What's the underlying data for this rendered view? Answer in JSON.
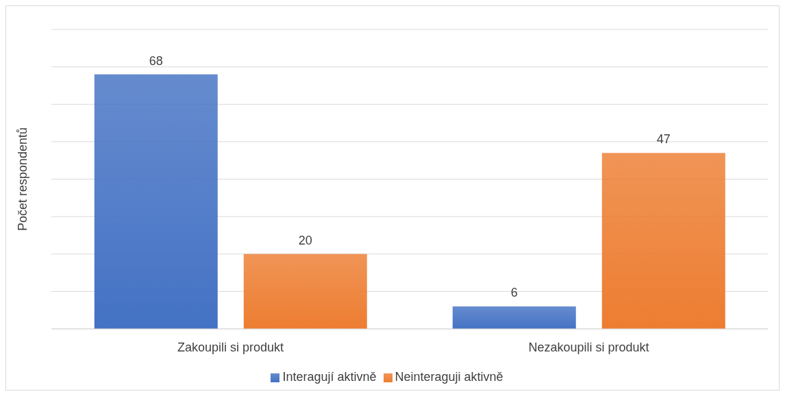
{
  "chart_data": {
    "type": "bar",
    "ylabel": "Počet respondentů",
    "categories": [
      "Zakoupili si produkt",
      "Nezakoupili si produkt"
    ],
    "series": [
      {
        "name": "Interagují aktivně",
        "color": "#4472c4",
        "values": [
          68,
          6
        ]
      },
      {
        "name": "Neinteraguji aktivně",
        "color": "#ed7d31",
        "values": [
          20,
          47
        ]
      }
    ],
    "ylim": [
      0,
      80
    ],
    "yticks": [
      {
        "value": 0,
        "label": null
      },
      {
        "value": 10,
        "label": null
      },
      {
        "value": 20,
        "label": null
      },
      {
        "value": 30,
        "label": null
      },
      {
        "value": 40,
        "label": null
      },
      {
        "value": 50,
        "label": null
      },
      {
        "value": 60,
        "label": null
      },
      {
        "value": 70,
        "label": null
      },
      {
        "value": 80,
        "label": null
      }
    ],
    "tick_labels": "x",
    "grid": "y",
    "legend": "bottom",
    "data_labels": true
  }
}
